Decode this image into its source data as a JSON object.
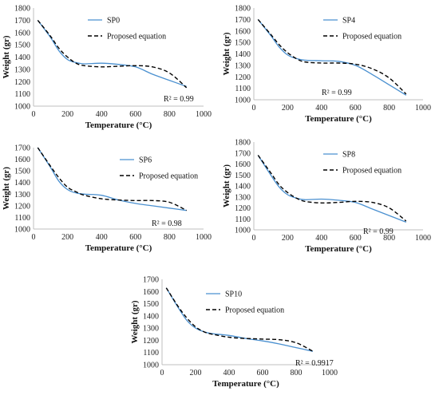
{
  "legend_proposed": "Proposed equation",
  "colors": {
    "measured": "#4a90d0",
    "proposed": "#000000",
    "axis": "#bfbfbf"
  },
  "chart_data": [
    {
      "type": "line",
      "xlabel": "Temperature (°C)",
      "ylabel": "Weight (gr)",
      "xlim": [
        0,
        1000
      ],
      "ylim": [
        1000,
        1800
      ],
      "xticks": [
        0,
        200,
        400,
        600,
        800,
        1000
      ],
      "yticks": [
        1000,
        1100,
        1200,
        1300,
        1400,
        1500,
        1600,
        1700,
        1800
      ],
      "annotation": "R² = 0.99",
      "series": [
        {
          "name": "SP0",
          "style": "solid",
          "x": [
            25,
            100,
            150,
            200,
            250,
            300,
            400,
            500,
            600,
            700,
            800,
            900
          ],
          "y": [
            1700,
            1560,
            1450,
            1380,
            1355,
            1345,
            1350,
            1340,
            1320,
            1260,
            1210,
            1160
          ]
        },
        {
          "name": "Proposed equation",
          "style": "dashed",
          "x": [
            25,
            100,
            150,
            200,
            250,
            300,
            400,
            500,
            600,
            700,
            800,
            900
          ],
          "y": [
            1700,
            1570,
            1470,
            1400,
            1350,
            1330,
            1320,
            1325,
            1330,
            1320,
            1270,
            1150
          ]
        }
      ]
    },
    {
      "type": "line",
      "xlabel": "Temperature (°C)",
      "ylabel": "Weight (gr)",
      "xlim": [
        0,
        1000
      ],
      "ylim": [
        1000,
        1800
      ],
      "xticks": [
        0,
        200,
        400,
        600,
        800,
        1000
      ],
      "yticks": [
        1000,
        1100,
        1200,
        1300,
        1400,
        1500,
        1600,
        1700,
        1800
      ],
      "annotation": "R² = 0.99",
      "series": [
        {
          "name": "SP4",
          "style": "solid",
          "x": [
            25,
            100,
            150,
            200,
            250,
            300,
            400,
            500,
            600,
            700,
            800,
            900
          ],
          "y": [
            1700,
            1560,
            1460,
            1390,
            1360,
            1345,
            1340,
            1335,
            1300,
            1220,
            1130,
            1040
          ]
        },
        {
          "name": "Proposed equation",
          "style": "dashed",
          "x": [
            25,
            100,
            150,
            200,
            250,
            300,
            400,
            500,
            600,
            700,
            800,
            900
          ],
          "y": [
            1700,
            1570,
            1480,
            1410,
            1360,
            1330,
            1320,
            1320,
            1310,
            1270,
            1190,
            1050
          ]
        }
      ]
    },
    {
      "type": "line",
      "xlabel": "Temperature (°C)",
      "ylabel": "Weight (gr)",
      "xlim": [
        0,
        1000
      ],
      "ylim": [
        1000,
        1700
      ],
      "xticks": [
        0,
        200,
        400,
        600,
        800,
        1000
      ],
      "yticks": [
        1000,
        1100,
        1200,
        1300,
        1400,
        1500,
        1600,
        1700
      ],
      "annotation": "R² = 0.98",
      "series": [
        {
          "name": "SP6",
          "style": "solid",
          "x": [
            25,
            100,
            150,
            200,
            250,
            300,
            400,
            500,
            600,
            700,
            800,
            900
          ],
          "y": [
            1700,
            1530,
            1410,
            1340,
            1310,
            1300,
            1290,
            1250,
            1220,
            1200,
            1180,
            1160
          ]
        },
        {
          "name": "Proposed equation",
          "style": "dashed",
          "x": [
            25,
            100,
            150,
            200,
            250,
            300,
            400,
            500,
            600,
            700,
            800,
            900
          ],
          "y": [
            1700,
            1540,
            1440,
            1360,
            1320,
            1290,
            1260,
            1250,
            1245,
            1245,
            1230,
            1160
          ]
        }
      ]
    },
    {
      "type": "line",
      "xlabel": "Temperature (°C)",
      "ylabel": "Weight (gr)",
      "xlim": [
        0,
        1000
      ],
      "ylim": [
        1000,
        1800
      ],
      "xticks": [
        0,
        200,
        400,
        600,
        800,
        1000
      ],
      "yticks": [
        1000,
        1100,
        1200,
        1300,
        1400,
        1500,
        1600,
        1700,
        1800
      ],
      "annotation": "R² = 0.99",
      "series": [
        {
          "name": "SP8",
          "style": "solid",
          "x": [
            25,
            100,
            150,
            200,
            250,
            300,
            400,
            500,
            600,
            700,
            800,
            900
          ],
          "y": [
            1680,
            1500,
            1390,
            1320,
            1290,
            1275,
            1280,
            1270,
            1250,
            1190,
            1130,
            1070
          ]
        },
        {
          "name": "Proposed equation",
          "style": "dashed",
          "x": [
            25,
            100,
            150,
            200,
            250,
            300,
            400,
            500,
            600,
            700,
            800,
            900
          ],
          "y": [
            1680,
            1520,
            1410,
            1340,
            1290,
            1260,
            1245,
            1250,
            1260,
            1250,
            1200,
            1080
          ]
        }
      ]
    },
    {
      "type": "line",
      "xlabel": "Temperature (°C)",
      "ylabel": "Weight (gr)",
      "xlim": [
        0,
        1000
      ],
      "ylim": [
        1000,
        1700
      ],
      "xticks": [
        0,
        200,
        400,
        600,
        800,
        1000
      ],
      "yticks": [
        1000,
        1100,
        1200,
        1300,
        1400,
        1500,
        1600,
        1700
      ],
      "annotation": "R² = 0.9917",
      "series": [
        {
          "name": "SP10",
          "style": "solid",
          "x": [
            25,
            100,
            150,
            200,
            250,
            300,
            400,
            500,
            600,
            700,
            800,
            900
          ],
          "y": [
            1630,
            1460,
            1360,
            1300,
            1270,
            1255,
            1240,
            1215,
            1195,
            1170,
            1140,
            1110
          ]
        },
        {
          "name": "Proposed equation",
          "style": "dashed",
          "x": [
            25,
            100,
            150,
            200,
            250,
            300,
            400,
            500,
            600,
            700,
            800,
            900
          ],
          "y": [
            1630,
            1470,
            1380,
            1310,
            1270,
            1250,
            1225,
            1215,
            1210,
            1205,
            1180,
            1110
          ]
        }
      ]
    }
  ]
}
